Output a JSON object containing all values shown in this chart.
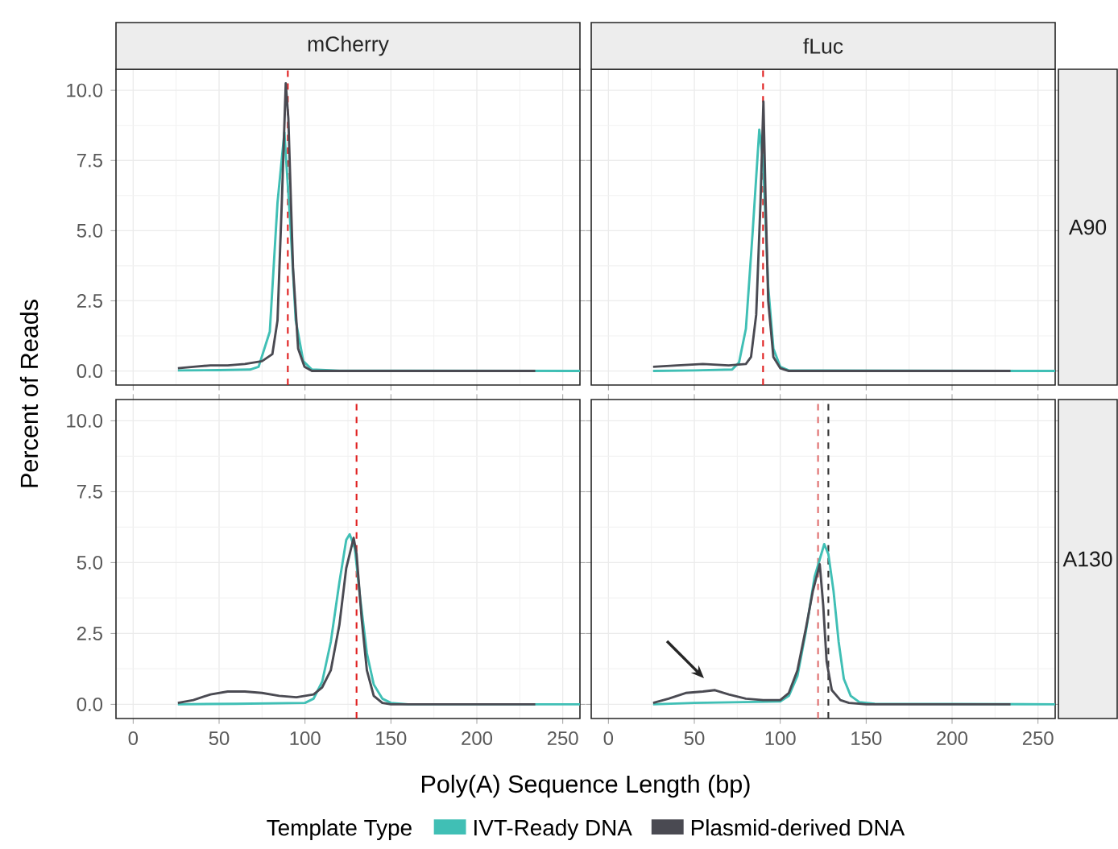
{
  "chart_data": [
    {
      "type": "line",
      "title": "mCherry",
      "ylabel": "Percent of Reads",
      "xlim": [
        -10,
        260
      ],
      "ylim": [
        -0.5,
        10.75
      ],
      "xticks": [
        0,
        50,
        100,
        150,
        200,
        250
      ],
      "yticks": [
        {
          "value": 0,
          "label": "0.0"
        },
        {
          "value": 2.5,
          "label": "2.5"
        },
        {
          "value": 5,
          "label": "5.0"
        },
        {
          "value": 7.5,
          "label": "7.5"
        },
        {
          "value": 10,
          "label": "10.0"
        }
      ],
      "grid": true,
      "tick_labels": "y",
      "series": [
        {
          "color": "#40bfb5",
          "x": [
            26,
            50,
            68,
            73,
            79.5,
            84,
            88,
            91.5,
            94.6,
            99,
            104,
            120,
            260
          ],
          "values": [
            0.02,
            0.03,
            0.05,
            0.15,
            1.4,
            6,
            8.5,
            5.2,
            1.8,
            0.35,
            0.05,
            0.01,
            0
          ]
        },
        {
          "color": "#4a4a52",
          "x": [
            26,
            35,
            45,
            55,
            65,
            75,
            81,
            84,
            86.5,
            88.8,
            90.3,
            93,
            96,
            99.7,
            104,
            150,
            234
          ],
          "values": [
            0.1,
            0.15,
            0.2,
            0.2,
            0.25,
            0.35,
            0.6,
            1.8,
            6,
            10.25,
            9,
            3.7,
            0.8,
            0.15,
            0,
            0,
            0
          ]
        }
      ],
      "ref_lines": [
        {
          "axis": "x",
          "value": 90,
          "color": "#e02020",
          "line_style": "dashed"
        }
      ]
    },
    {
      "type": "line",
      "title": "fLuc",
      "y2label": "A90",
      "xlim": [
        -10,
        260
      ],
      "ylim": [
        -0.5,
        10.75
      ],
      "xticks": [
        0,
        50,
        100,
        150,
        200,
        250
      ],
      "yticks": [
        0,
        2.5,
        5,
        7.5,
        10
      ],
      "grid": true,
      "tick_labels": false,
      "series": [
        {
          "color": "#40bfb5",
          "x": [
            26,
            50,
            72,
            76,
            80,
            84,
            87.8,
            90,
            93,
            96,
            100,
            105,
            260
          ],
          "values": [
            0,
            0.02,
            0.05,
            0.3,
            1.5,
            5,
            8.6,
            7.5,
            3,
            0.8,
            0.15,
            0.02,
            0
          ]
        },
        {
          "color": "#4a4a52",
          "x": [
            26,
            40,
            55,
            70,
            80,
            83,
            86,
            88.5,
            90.2,
            91.5,
            93,
            96,
            100,
            105,
            234
          ],
          "values": [
            0.15,
            0.2,
            0.25,
            0.2,
            0.25,
            0.5,
            2,
            6,
            9.6,
            6,
            2.5,
            0.5,
            0.1,
            0,
            0
          ]
        }
      ],
      "ref_lines": [
        {
          "axis": "x",
          "value": 90,
          "color": "#e02020",
          "line_style": "dashed"
        }
      ]
    },
    {
      "type": "line",
      "xlabel": "Poly(A) Sequence Length (bp)",
      "legend": "bottom",
      "legend_title": "Template Type",
      "xlim": [
        -10,
        260
      ],
      "ylim": [
        -0.5,
        10.75
      ],
      "xticks": [
        0,
        50,
        100,
        150,
        200,
        250
      ],
      "yticks": [
        {
          "value": 0,
          "label": "0.0"
        },
        {
          "value": 2.5,
          "label": "2.5"
        },
        {
          "value": 5,
          "label": "5.0"
        },
        {
          "value": 7.5,
          "label": "7.5"
        },
        {
          "value": 10,
          "label": "10.0"
        }
      ],
      "grid": true,
      "series": [
        {
          "name": "IVT-Ready DNA",
          "color": "#40bfb5",
          "x": [
            26,
            60,
            100,
            105,
            110,
            115,
            120,
            124,
            126,
            129,
            132,
            136,
            140,
            145,
            150,
            160,
            260
          ],
          "values": [
            0,
            0.02,
            0.05,
            0.2,
            0.8,
            2.2,
            4.3,
            5.8,
            6,
            5.5,
            3.8,
            1.8,
            0.7,
            0.2,
            0.05,
            0,
            0
          ]
        },
        {
          "name": "Plasmid-derived DNA",
          "color": "#4a4a52",
          "x": [
            26,
            35,
            45,
            55,
            65,
            75,
            85,
            95,
            105,
            110,
            115,
            120,
            124,
            128.3,
            130,
            133,
            136,
            140,
            145,
            150,
            234
          ],
          "values": [
            0.05,
            0.15,
            0.35,
            0.45,
            0.45,
            0.4,
            0.3,
            0.25,
            0.35,
            0.6,
            1.2,
            2.8,
            4.8,
            5.87,
            5.3,
            3,
            1.2,
            0.3,
            0.05,
            0,
            0
          ]
        }
      ],
      "ref_lines": [
        {
          "axis": "x",
          "value": 130,
          "color": "#e02020",
          "line_style": "dashed"
        }
      ]
    },
    {
      "type": "line",
      "y2label": "A130",
      "xlim": [
        -10,
        260
      ],
      "ylim": [
        -0.5,
        10.75
      ],
      "xticks": [
        0,
        50,
        100,
        150,
        200,
        250
      ],
      "yticks": [
        0,
        2.5,
        5,
        7.5,
        10
      ],
      "grid": true,
      "tick_labels": "x",
      "series": [
        {
          "color": "#40bfb5",
          "x": [
            26,
            50,
            100,
            105,
            110,
            115,
            120,
            125.6,
            128,
            131,
            134,
            137,
            141,
            146,
            155,
            260
          ],
          "values": [
            0,
            0.05,
            0.1,
            0.3,
            1,
            2.6,
            4.5,
            5.65,
            5.3,
            4,
            2.2,
            0.9,
            0.3,
            0.08,
            0.02,
            0
          ]
        },
        {
          "color": "#4a4a52",
          "x": [
            26,
            35,
            45,
            55,
            62,
            70,
            80,
            90,
            100,
            105,
            110,
            115,
            119,
            123,
            125,
            127,
            130,
            135,
            140,
            150,
            234
          ],
          "values": [
            0.05,
            0.2,
            0.4,
            0.45,
            0.5,
            0.35,
            0.2,
            0.15,
            0.15,
            0.4,
            1.2,
            2.7,
            4,
            4.94,
            3.5,
            1.5,
            0.5,
            0.15,
            0.05,
            0,
            0
          ]
        }
      ],
      "ref_lines": [
        {
          "axis": "x",
          "value": 122,
          "color": "#e07070",
          "line_style": "dashed"
        },
        {
          "axis": "x",
          "value": 128,
          "color": "#333333",
          "line_style": "dashed"
        }
      ]
    }
  ]
}
